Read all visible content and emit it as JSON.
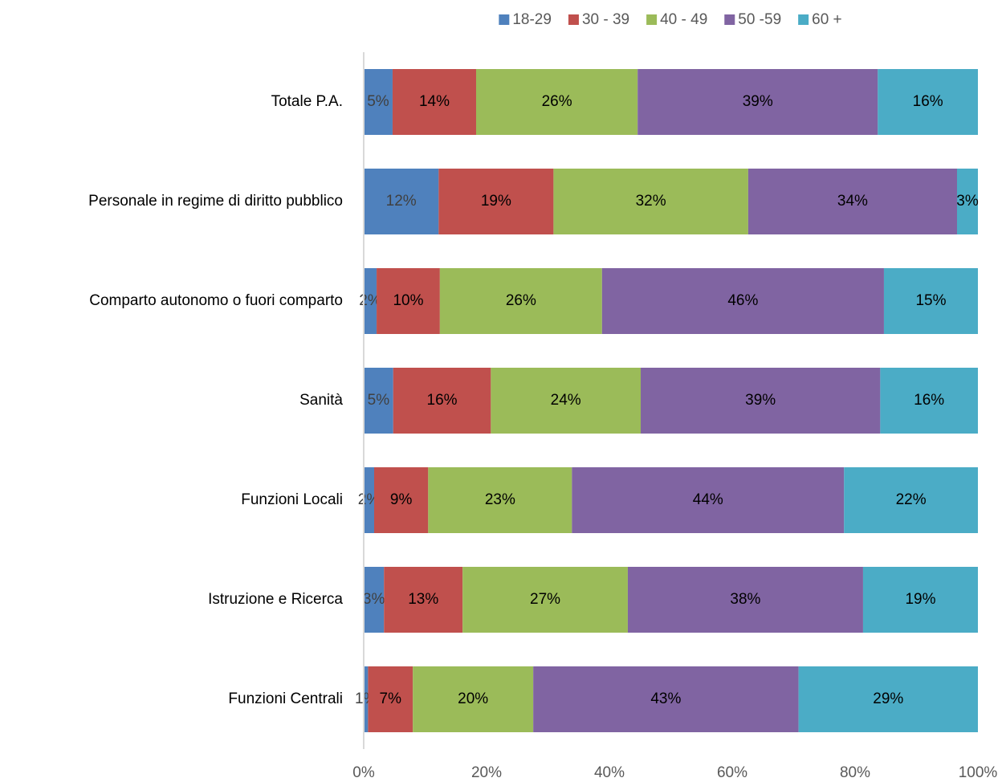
{
  "chart_data": {
    "type": "stacked_barh",
    "categories": [
      "Totale P.A.",
      "Personale in regime di diritto pubblico",
      "Comparto autonomo o fuori comparto",
      "Sanità",
      "Funzioni Locali",
      "Istruzione e Ricerca",
      "Funzioni Centrali"
    ],
    "series": [
      {
        "name": "18-29",
        "color": "#4f81bd",
        "values": [
          4.7,
          12.2,
          2.1,
          4.8,
          1.7,
          3.3,
          0.7
        ],
        "value_labels": [
          "5%",
          "12%",
          "2%",
          "5%",
          "2%",
          "3%",
          "1%"
        ]
      },
      {
        "name": "30 - 39",
        "color": "#c0504d",
        "values": [
          13.6,
          18.7,
          10.3,
          15.9,
          8.8,
          12.8,
          7.3
        ],
        "value_labels": [
          "14%",
          "19%",
          "10%",
          "16%",
          "9%",
          "13%",
          "7%"
        ]
      },
      {
        "name": "40 - 49",
        "color": "#9bbb59",
        "values": [
          26.3,
          31.7,
          26.4,
          24.4,
          23.4,
          26.9,
          19.6
        ],
        "value_labels": [
          "26%",
          "32%",
          "26%",
          "24%",
          "23%",
          "27%",
          "20%"
        ]
      },
      {
        "name": "50 -59",
        "color": "#8064a2",
        "values": [
          39.1,
          34.0,
          45.9,
          39.0,
          44.3,
          38.3,
          43.2
        ],
        "value_labels": [
          "39%",
          "34%",
          "46%",
          "39%",
          "44%",
          "38%",
          "43%"
        ]
      },
      {
        "name": "60 +",
        "color": "#4bacc6",
        "values": [
          16.3,
          3.4,
          15.3,
          15.9,
          21.8,
          18.7,
          29.2
        ],
        "value_labels": [
          "16%",
          "3%",
          "15%",
          "16%",
          "22%",
          "19%",
          "29%"
        ]
      }
    ],
    "xlim": [
      0,
      100
    ],
    "xticks": [
      {
        "value": 0,
        "label": "0%"
      },
      {
        "value": 20,
        "label": "20%"
      },
      {
        "value": 40,
        "label": "40%"
      },
      {
        "value": 60,
        "label": "60%"
      },
      {
        "value": 80,
        "label": "80%"
      },
      {
        "value": 100,
        "label": "100%"
      }
    ],
    "legend": "top"
  }
}
